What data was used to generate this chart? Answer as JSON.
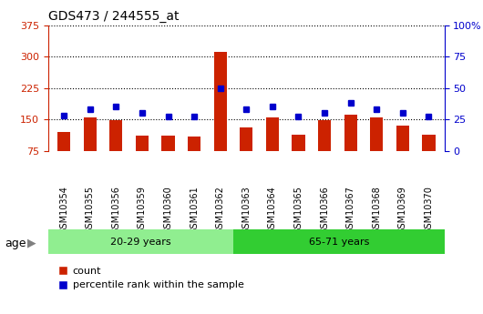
{
  "title": "GDS473 / 244555_at",
  "samples": [
    "GSM10354",
    "GSM10355",
    "GSM10356",
    "GSM10359",
    "GSM10360",
    "GSM10361",
    "GSM10362",
    "GSM10363",
    "GSM10364",
    "GSM10365",
    "GSM10366",
    "GSM10367",
    "GSM10368",
    "GSM10369",
    "GSM10370"
  ],
  "counts": [
    120,
    155,
    148,
    112,
    112,
    110,
    310,
    130,
    155,
    113,
    148,
    160,
    155,
    135,
    113
  ],
  "percentile": [
    28,
    33,
    35,
    30,
    27,
    27,
    50,
    33,
    35,
    27,
    30,
    38,
    33,
    30,
    27
  ],
  "group1_label": "20-29 years",
  "group2_label": "65-71 years",
  "group1_count": 7,
  "group2_count": 8,
  "group1_color": "#90ee90",
  "group2_color": "#32cd32",
  "bar_color": "#cc2200",
  "marker_color": "#0000cc",
  "ylim_left": [
    75,
    375
  ],
  "ylim_right": [
    0,
    100
  ],
  "yticks_left": [
    75,
    150,
    225,
    300,
    375
  ],
  "yticks_right": [
    0,
    25,
    50,
    75,
    100
  ],
  "ytick_labels_right": [
    "0",
    "25",
    "50",
    "75",
    "100%"
  ],
  "age_label": "age",
  "legend_count_label": "count",
  "legend_pct_label": "percentile rank within the sample",
  "bg_color": "#c8c8c8",
  "plot_bg": "#ffffff"
}
